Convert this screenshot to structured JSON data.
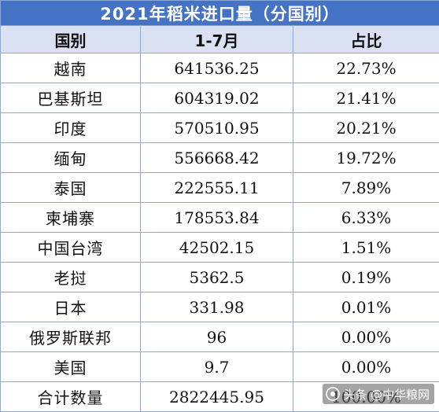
{
  "table": {
    "title": "2021年稻米进口量（分国别）",
    "headers": [
      "国别",
      "1-7月",
      "占比"
    ],
    "rows": [
      {
        "country": "越南",
        "amount": "641536.25",
        "share": "22.73%"
      },
      {
        "country": "巴基斯坦",
        "amount": "604319.02",
        "share": "21.41%"
      },
      {
        "country": "印度",
        "amount": "570510.95",
        "share": "20.21%"
      },
      {
        "country": "缅甸",
        "amount": "556668.42",
        "share": "19.72%"
      },
      {
        "country": "泰国",
        "amount": "222555.11",
        "share": "7.89%"
      },
      {
        "country": "柬埔寨",
        "amount": "178553.84",
        "share": "6.33%"
      },
      {
        "country": "中国台湾",
        "amount": "42502.15",
        "share": "1.51%"
      },
      {
        "country": "老挝",
        "amount": "5362.5",
        "share": "0.19%"
      },
      {
        "country": "日本",
        "amount": "331.98",
        "share": "0.01%"
      },
      {
        "country": "俄罗斯联邦",
        "amount": "96",
        "share": "0.00%"
      },
      {
        "country": "美国",
        "amount": "9.7",
        "share": "0.00%"
      }
    ],
    "total": {
      "label": "合计数量",
      "amount": "2822445.95",
      "share": "100.00%"
    }
  },
  "watermark": {
    "text": "头条 @中华粮网",
    "icon": "camera-icon"
  }
}
